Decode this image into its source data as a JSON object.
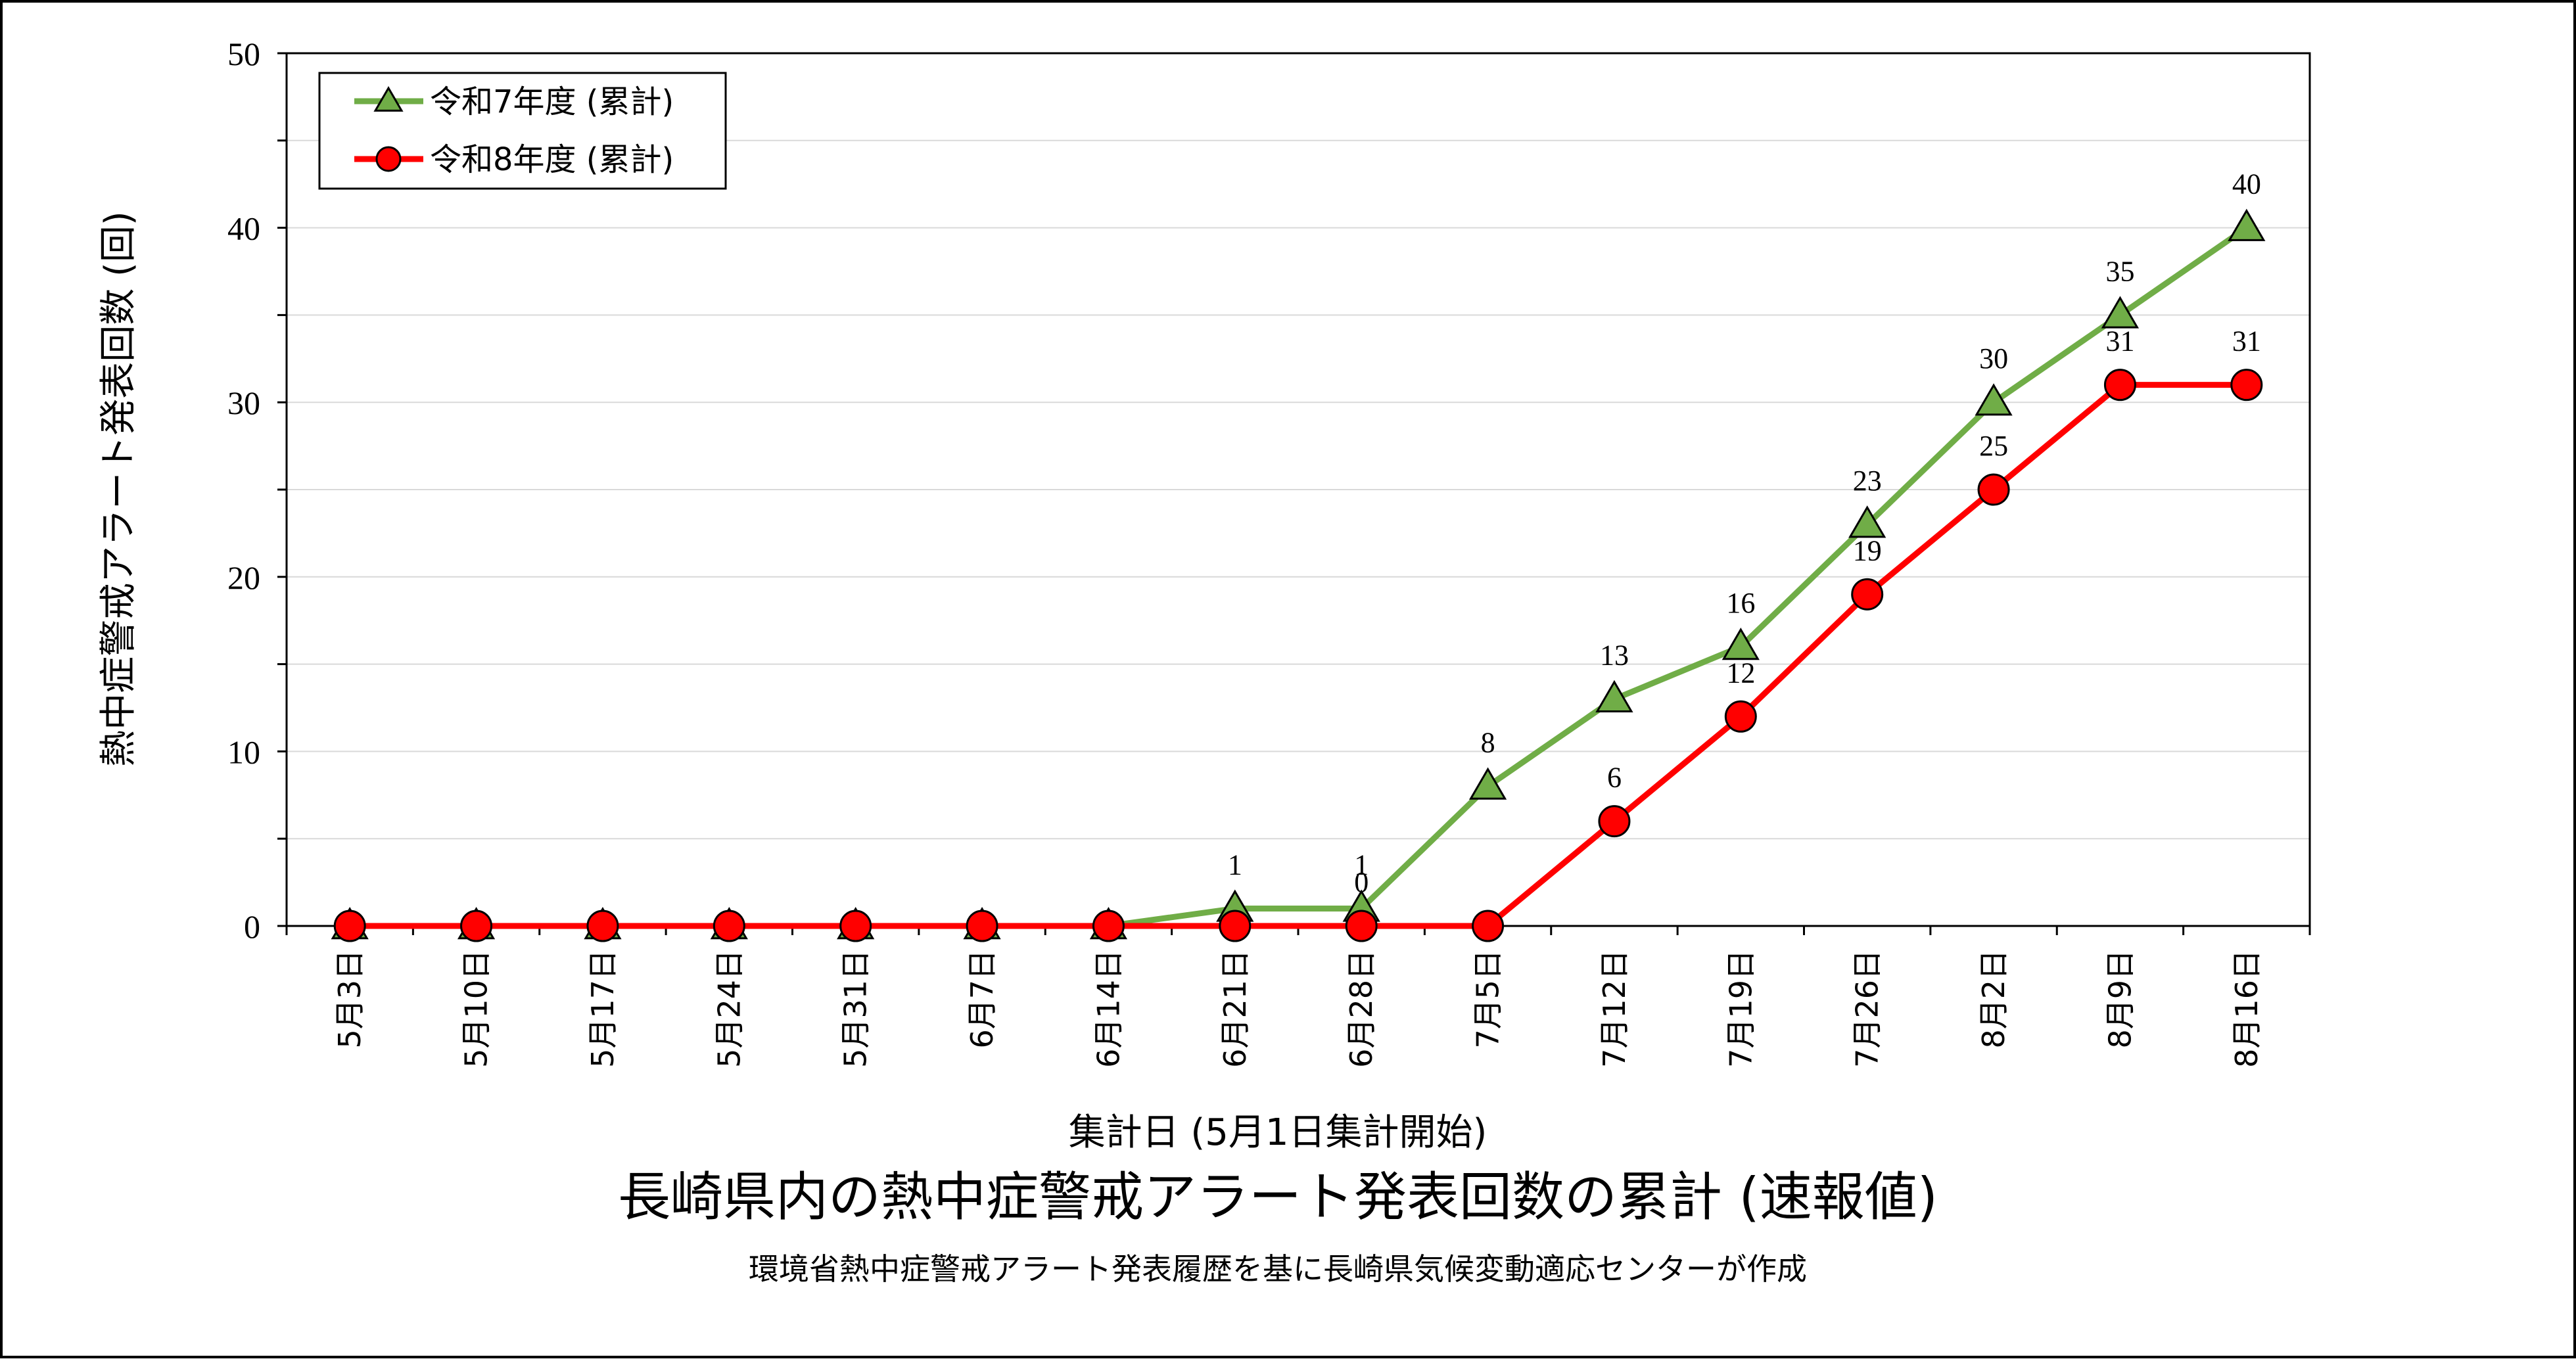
{
  "chart_data": {
    "type": "line",
    "title": "長崎県内の熱中症警戒アラート発表回数の累計 (速報値)",
    "subtitle": "環境省熱中症警戒アラート発表履歴を基に長崎県気候変動適応センターが作成",
    "xlabel": "集計日 (5月1日集計開始)",
    "ylabel": "熱中症警戒アラート発表回数 (回)",
    "ylim": [
      0,
      50
    ],
    "y_ticks": [
      "0",
      "10",
      "20",
      "30",
      "40",
      "50"
    ],
    "grid": true,
    "legend_position": "top-left",
    "categories": [
      "5月3日",
      "5月10日",
      "5月17日",
      "5月24日",
      "5月31日",
      "6月7日",
      "6月14日",
      "6月21日",
      "6月28日",
      "7月5日",
      "7月12日",
      "7月19日",
      "7月26日",
      "8月2日",
      "8月9日",
      "8月16日"
    ],
    "series": [
      {
        "name": "令和7年度 (累計)",
        "color": "#70AD47",
        "marker": "triangle",
        "values": [
          0,
          0,
          0,
          0,
          0,
          0,
          0,
          1,
          1,
          8,
          13,
          16,
          23,
          30,
          35,
          40
        ],
        "labels": [
          "",
          "",
          "",
          "",
          "",
          "",
          "",
          "1",
          "1",
          "8",
          "13",
          "16",
          "23",
          "30",
          "35",
          "40"
        ]
      },
      {
        "name": "令和8年度 (累計)",
        "color": "#FF0000",
        "marker": "circle",
        "values": [
          0,
          0,
          0,
          0,
          0,
          0,
          0,
          0,
          0,
          0,
          6,
          12,
          19,
          25,
          31,
          31
        ],
        "labels": [
          "",
          "",
          "",
          "",
          "",
          "",
          "",
          "",
          "0",
          "",
          "6",
          "12",
          "19",
          "25",
          "31",
          "31"
        ]
      }
    ]
  }
}
